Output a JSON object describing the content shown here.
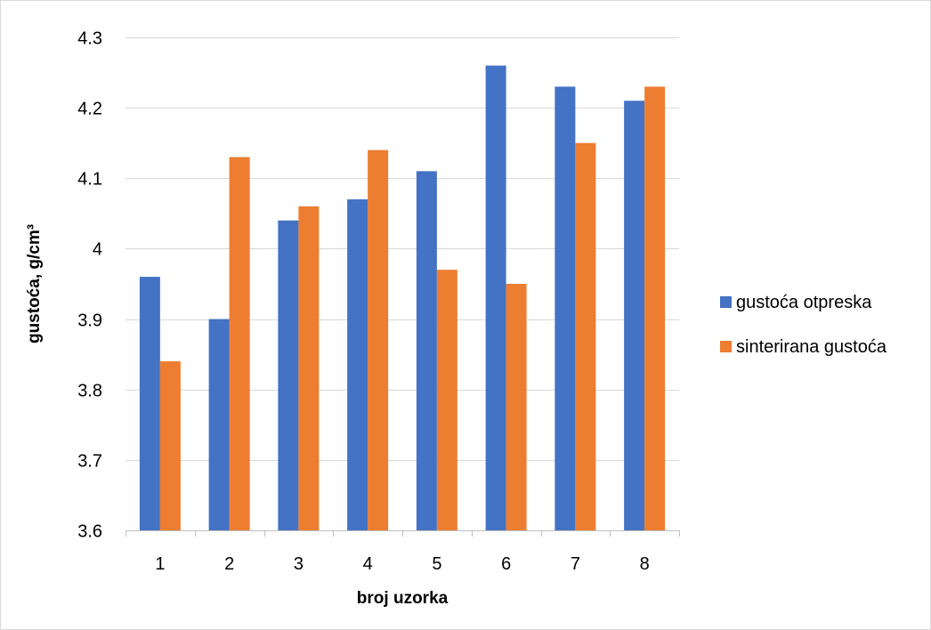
{
  "chart_data": {
    "type": "bar",
    "title": "",
    "xlabel": "broj uzorka",
    "ylabel": "gustoća, g/cm³",
    "categories": [
      "1",
      "2",
      "3",
      "4",
      "5",
      "6",
      "7",
      "8"
    ],
    "ylim": [
      3.6,
      4.3
    ],
    "yticks": [
      "3.6",
      "3.7",
      "3.8",
      "3.9",
      "4",
      "4.1",
      "4.2",
      "4.3"
    ],
    "grid": true,
    "legend_position": "right",
    "series": [
      {
        "name": "gustoća otpreska",
        "color": "#4472c4",
        "values": [
          3.96,
          3.9,
          4.04,
          4.07,
          4.11,
          4.26,
          4.23,
          4.21
        ]
      },
      {
        "name": "sinterirana gustoća",
        "color": "#ed7d31",
        "values": [
          3.84,
          4.13,
          4.06,
          4.14,
          3.97,
          3.95,
          4.15,
          4.23
        ]
      }
    ]
  }
}
